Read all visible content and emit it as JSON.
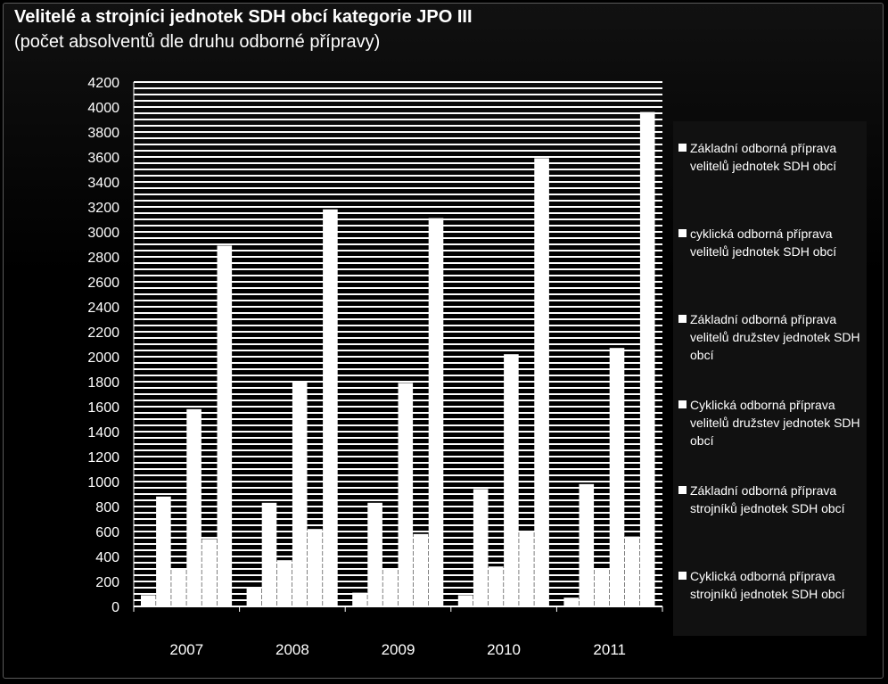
{
  "title": "Velitelé a strojníci jednotek SDH obcí kategorie JPO III",
  "subtitle": "(počet absolventů dle druhu odborné přípravy)",
  "chart_data": {
    "type": "bar",
    "categories": [
      "2007",
      "2008",
      "2009",
      "2010",
      "2011"
    ],
    "y_ticks": [
      "0",
      "200",
      "400",
      "600",
      "800",
      "1000",
      "1200",
      "1400",
      "1600",
      "1800",
      "2000",
      "2200",
      "2400",
      "2600",
      "2800",
      "3000",
      "3200",
      "3400",
      "3600",
      "3800",
      "4000",
      "4200"
    ],
    "ylim": [
      0,
      4200
    ],
    "grid": true,
    "legend_position": "right",
    "series": [
      {
        "name": "Základní odborná příprava velitelů jednotek SDH obcí",
        "values": [
          90,
          150,
          110,
          90,
          70
        ]
      },
      {
        "name": "cyklická odborná příprava velitelů jednotek SDH obcí",
        "values": [
          880,
          830,
          830,
          940,
          980
        ]
      },
      {
        "name": "Základní odborná příprava velitelů družstev jednotek SDH obcí",
        "values": [
          300,
          370,
          300,
          320,
          300
        ]
      },
      {
        "name": "Cyklická odborná příprava velitelů družstev jednotek SDH obcí",
        "values": [
          1580,
          1800,
          1790,
          2020,
          2070
        ]
      },
      {
        "name": "Základní odborná příprava strojníků jednotek SDH obcí",
        "values": [
          540,
          620,
          580,
          600,
          560
        ]
      },
      {
        "name": "Cyklická odborná příprava strojníků jednotek SDH obcí",
        "values": [
          2890,
          3180,
          3110,
          3590,
          3960
        ]
      }
    ]
  }
}
